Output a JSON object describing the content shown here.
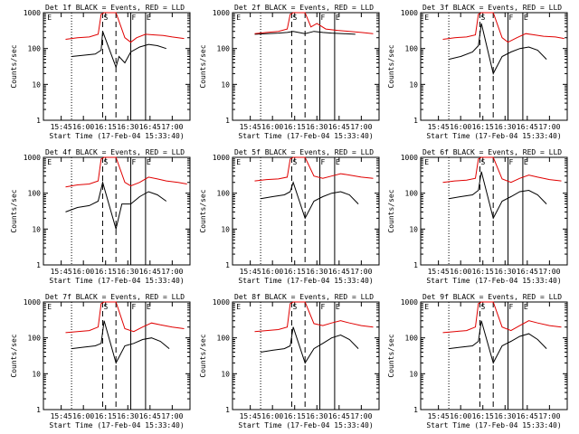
{
  "colors": {
    "events": "#000000",
    "lld": "#e00000",
    "background": "#ffffff"
  },
  "common": {
    "xlabel": "Start Time (17-Feb-04 15:33:40)",
    "ylabel": "Counts/sec",
    "x_ticks": [
      "15:45",
      "16:00",
      "16:15",
      "16:30",
      "16:45",
      "17:00"
    ],
    "y_ticks": [
      "1",
      "10",
      "100",
      "1000"
    ],
    "markers": {
      "E": "E",
      "S": "S",
      "F": "F"
    }
  },
  "chart_data": [
    {
      "panel": "Det 1f",
      "type": "line",
      "title": "Det 1f BLACK = Events, RED = LLD",
      "xlabel": "Start Time (17-Feb-04 15:33:40)",
      "ylabel": "Counts/sec",
      "yscale": "log",
      "ylim": [
        1,
        1000
      ],
      "x_ticks": [
        "15:45",
        "16:00",
        "16:15",
        "16:30",
        "16:45",
        "17:00"
      ],
      "series": [
        {
          "name": "Events",
          "color": "#000000",
          "x": [
            "15:52",
            "16:00",
            "16:08",
            "16:12",
            "16:13",
            "16:22",
            "16:24",
            "16:28",
            "16:32",
            "16:38",
            "16:44",
            "16:50",
            "16:56"
          ],
          "y": [
            60,
            65,
            70,
            90,
            300,
            30,
            60,
            40,
            80,
            110,
            130,
            120,
            100
          ]
        },
        {
          "name": "LLD",
          "color": "#e00000",
          "x": [
            "15:48",
            "15:56",
            "16:04",
            "16:10",
            "16:12",
            "16:14",
            "16:22",
            "16:28",
            "16:32",
            "16:36",
            "16:42",
            "16:48",
            "16:54",
            "17:00",
            "17:08"
          ],
          "y": [
            180,
            200,
            210,
            250,
            900,
            1000,
            1000,
            200,
            150,
            200,
            250,
            240,
            230,
            210,
            190
          ]
        }
      ]
    },
    {
      "panel": "Det 2f",
      "type": "line",
      "title": "Det 2f BLACK = Events, RED = LLD",
      "xlabel": "Start Time (17-Feb-04 15:33:40)",
      "ylabel": "Counts/sec",
      "yscale": "log",
      "ylim": [
        1,
        1000
      ],
      "x_ticks": [
        "15:45",
        "16:00",
        "16:15",
        "16:30",
        "16:45",
        "17:00"
      ],
      "series": [
        {
          "name": "Events",
          "color": "#000000",
          "x": [
            "15:48",
            "15:56",
            "16:04",
            "16:10",
            "16:14",
            "16:22",
            "16:28",
            "16:34",
            "16:40",
            "16:48",
            "16:56"
          ],
          "y": [
            250,
            260,
            270,
            280,
            300,
            260,
            300,
            280,
            270,
            260,
            250
          ]
        },
        {
          "name": "LLD",
          "color": "#e00000",
          "x": [
            "15:48",
            "15:56",
            "16:04",
            "16:10",
            "16:12",
            "16:14",
            "16:22",
            "16:26",
            "16:30",
            "16:36",
            "16:44",
            "16:52",
            "17:00",
            "17:08"
          ],
          "y": [
            260,
            280,
            300,
            350,
            900,
            1000,
            1000,
            400,
            500,
            350,
            320,
            300,
            280,
            260
          ]
        }
      ]
    },
    {
      "panel": "Det 3f",
      "type": "line",
      "title": "Det 3f BLACK = Events, RED = LLD",
      "xlabel": "Start Time (17-Feb-04 15:33:40)",
      "ylabel": "Counts/sec",
      "yscale": "log",
      "ylim": [
        1,
        1000
      ],
      "x_ticks": [
        "15:45",
        "16:00",
        "16:15",
        "16:30",
        "16:45",
        "17:00"
      ],
      "series": [
        {
          "name": "Events",
          "color": "#000000",
          "x": [
            "15:52",
            "16:00",
            "16:08",
            "16:12",
            "16:14",
            "16:22",
            "16:28",
            "16:34",
            "16:40",
            "16:46",
            "16:52",
            "16:58"
          ],
          "y": [
            50,
            60,
            80,
            120,
            500,
            20,
            60,
            80,
            100,
            110,
            90,
            50
          ]
        },
        {
          "name": "LLD",
          "color": "#e00000",
          "x": [
            "15:48",
            "15:56",
            "16:04",
            "16:10",
            "16:12",
            "16:14",
            "16:22",
            "16:28",
            "16:32",
            "16:38",
            "16:44",
            "16:50",
            "16:56",
            "17:04",
            "17:10"
          ],
          "y": [
            180,
            200,
            210,
            240,
            900,
            1000,
            1000,
            200,
            150,
            200,
            260,
            240,
            220,
            210,
            190
          ]
        }
      ]
    },
    {
      "panel": "Det 4f",
      "type": "line",
      "title": "Det 4f BLACK = Events, RED = LLD",
      "xlabel": "Start Time (17-Feb-04 15:33:40)",
      "ylabel": "Counts/sec",
      "yscale": "log",
      "ylim": [
        1,
        1000
      ],
      "x_ticks": [
        "15:45",
        "16:00",
        "16:15",
        "16:30",
        "16:45",
        "17:00"
      ],
      "series": [
        {
          "name": "Events",
          "color": "#000000",
          "x": [
            "15:48",
            "15:56",
            "16:04",
            "16:10",
            "16:13",
            "16:22",
            "16:26",
            "16:32",
            "16:38",
            "16:44",
            "16:50",
            "16:56"
          ],
          "y": [
            30,
            40,
            45,
            60,
            200,
            10,
            50,
            50,
            80,
            110,
            90,
            60
          ]
        },
        {
          "name": "LLD",
          "color": "#e00000",
          "x": [
            "15:48",
            "15:56",
            "16:04",
            "16:10",
            "16:12",
            "16:14",
            "16:22",
            "16:28",
            "16:32",
            "16:38",
            "16:44",
            "16:50",
            "16:56",
            "17:04",
            "17:10"
          ],
          "y": [
            150,
            170,
            180,
            220,
            900,
            1000,
            1000,
            200,
            160,
            200,
            280,
            250,
            220,
            200,
            180
          ]
        }
      ]
    },
    {
      "panel": "Det 5f",
      "type": "line",
      "title": "Det 5f BLACK = Events, RED = LLD",
      "xlabel": "Start Time (17-Feb-04 15:33:40)",
      "ylabel": "Counts/sec",
      "yscale": "log",
      "ylim": [
        1,
        1000
      ],
      "x_ticks": [
        "15:45",
        "16:00",
        "16:15",
        "16:30",
        "16:45",
        "17:00"
      ],
      "series": [
        {
          "name": "Events",
          "color": "#000000",
          "x": [
            "15:52",
            "16:00",
            "16:08",
            "16:12",
            "16:14",
            "16:22",
            "16:28",
            "16:34",
            "16:40",
            "16:46",
            "16:52",
            "16:58"
          ],
          "y": [
            70,
            80,
            90,
            110,
            200,
            20,
            60,
            80,
            100,
            110,
            90,
            50
          ]
        },
        {
          "name": "LLD",
          "color": "#e00000",
          "x": [
            "15:48",
            "15:56",
            "16:04",
            "16:10",
            "16:12",
            "16:14",
            "16:22",
            "16:28",
            "16:34",
            "16:40",
            "16:46",
            "16:52",
            "17:00",
            "17:08"
          ],
          "y": [
            220,
            240,
            250,
            280,
            900,
            1000,
            1000,
            300,
            260,
            300,
            350,
            320,
            280,
            260
          ]
        }
      ]
    },
    {
      "panel": "Det 6f",
      "type": "line",
      "title": "Det 6f BLACK = Events, RED = LLD",
      "xlabel": "Start Time (17-Feb-04 15:33:40)",
      "ylabel": "Counts/sec",
      "yscale": "log",
      "ylim": [
        1,
        1000
      ],
      "x_ticks": [
        "15:45",
        "16:00",
        "16:15",
        "16:30",
        "16:45",
        "17:00"
      ],
      "series": [
        {
          "name": "Events",
          "color": "#000000",
          "x": [
            "15:52",
            "16:00",
            "16:08",
            "16:12",
            "16:14",
            "16:22",
            "16:28",
            "16:34",
            "16:40",
            "16:46",
            "16:52",
            "16:58"
          ],
          "y": [
            70,
            80,
            90,
            120,
            400,
            20,
            60,
            80,
            110,
            120,
            90,
            50
          ]
        },
        {
          "name": "LLD",
          "color": "#e00000",
          "x": [
            "15:48",
            "15:56",
            "16:04",
            "16:10",
            "16:12",
            "16:14",
            "16:22",
            "16:28",
            "16:34",
            "16:40",
            "16:46",
            "16:52",
            "17:00",
            "17:08"
          ],
          "y": [
            200,
            220,
            230,
            260,
            900,
            1000,
            1000,
            250,
            200,
            260,
            320,
            280,
            240,
            220
          ]
        }
      ]
    },
    {
      "panel": "Det 7f",
      "type": "line",
      "title": "Det 7f BLACK = Events, RED = LLD",
      "xlabel": "Start Time (17-Feb-04 15:33:40)",
      "ylabel": "Counts/sec",
      "yscale": "log",
      "ylim": [
        1,
        1000
      ],
      "x_ticks": [
        "15:45",
        "16:00",
        "16:15",
        "16:30",
        "16:45",
        "17:00"
      ],
      "series": [
        {
          "name": "Events",
          "color": "#000000",
          "x": [
            "15:52",
            "16:00",
            "16:08",
            "16:12",
            "16:14",
            "16:22",
            "16:28",
            "16:34",
            "16:40",
            "16:46",
            "16:52",
            "16:58"
          ],
          "y": [
            50,
            55,
            60,
            70,
            300,
            20,
            60,
            70,
            90,
            100,
            80,
            50
          ]
        },
        {
          "name": "LLD",
          "color": "#e00000",
          "x": [
            "15:48",
            "15:56",
            "16:04",
            "16:10",
            "16:12",
            "16:14",
            "16:22",
            "16:28",
            "16:34",
            "16:40",
            "16:46",
            "16:52",
            "17:00",
            "17:08"
          ],
          "y": [
            140,
            150,
            160,
            200,
            900,
            1000,
            1000,
            180,
            150,
            200,
            260,
            230,
            200,
            180
          ]
        }
      ]
    },
    {
      "panel": "Det 8f",
      "type": "line",
      "title": "Det 8f BLACK = Events, RED = LLD",
      "xlabel": "Start Time (17-Feb-04 15:33:40)",
      "ylabel": "Counts/sec",
      "yscale": "log",
      "ylim": [
        1,
        1000
      ],
      "x_ticks": [
        "15:45",
        "16:00",
        "16:15",
        "16:30",
        "16:45",
        "17:00"
      ],
      "series": [
        {
          "name": "Events",
          "color": "#000000",
          "x": [
            "15:52",
            "16:00",
            "16:08",
            "16:12",
            "16:14",
            "16:22",
            "16:28",
            "16:34",
            "16:40",
            "16:46",
            "16:52",
            "16:58"
          ],
          "y": [
            40,
            45,
            50,
            60,
            200,
            20,
            50,
            70,
            100,
            120,
            90,
            50
          ]
        },
        {
          "name": "LLD",
          "color": "#e00000",
          "x": [
            "15:48",
            "15:56",
            "16:04",
            "16:10",
            "16:12",
            "16:14",
            "16:22",
            "16:28",
            "16:34",
            "16:40",
            "16:46",
            "16:52",
            "17:00",
            "17:08"
          ],
          "y": [
            150,
            160,
            170,
            200,
            900,
            1000,
            1000,
            250,
            220,
            260,
            300,
            260,
            220,
            200
          ]
        }
      ]
    },
    {
      "panel": "Det 9f",
      "type": "line",
      "title": "Det 9f BLACK = Events, RED = LLD",
      "xlabel": "Start Time (17-Feb-04 15:33:40)",
      "ylabel": "Counts/sec",
      "yscale": "log",
      "ylim": [
        1,
        1000
      ],
      "x_ticks": [
        "15:45",
        "16:00",
        "16:15",
        "16:30",
        "16:45",
        "17:00"
      ],
      "series": [
        {
          "name": "Events",
          "color": "#000000",
          "x": [
            "15:52",
            "16:00",
            "16:08",
            "16:12",
            "16:14",
            "16:22",
            "16:28",
            "16:34",
            "16:40",
            "16:46",
            "16:52",
            "16:58"
          ],
          "y": [
            50,
            55,
            60,
            80,
            300,
            20,
            60,
            80,
            110,
            130,
            90,
            50
          ]
        },
        {
          "name": "LLD",
          "color": "#e00000",
          "x": [
            "15:48",
            "15:56",
            "16:04",
            "16:10",
            "16:12",
            "16:14",
            "16:22",
            "16:28",
            "16:34",
            "16:40",
            "16:46",
            "16:52",
            "17:00",
            "17:08"
          ],
          "y": [
            140,
            150,
            160,
            200,
            900,
            1000,
            1000,
            200,
            160,
            220,
            300,
            260,
            220,
            200
          ]
        }
      ]
    }
  ]
}
